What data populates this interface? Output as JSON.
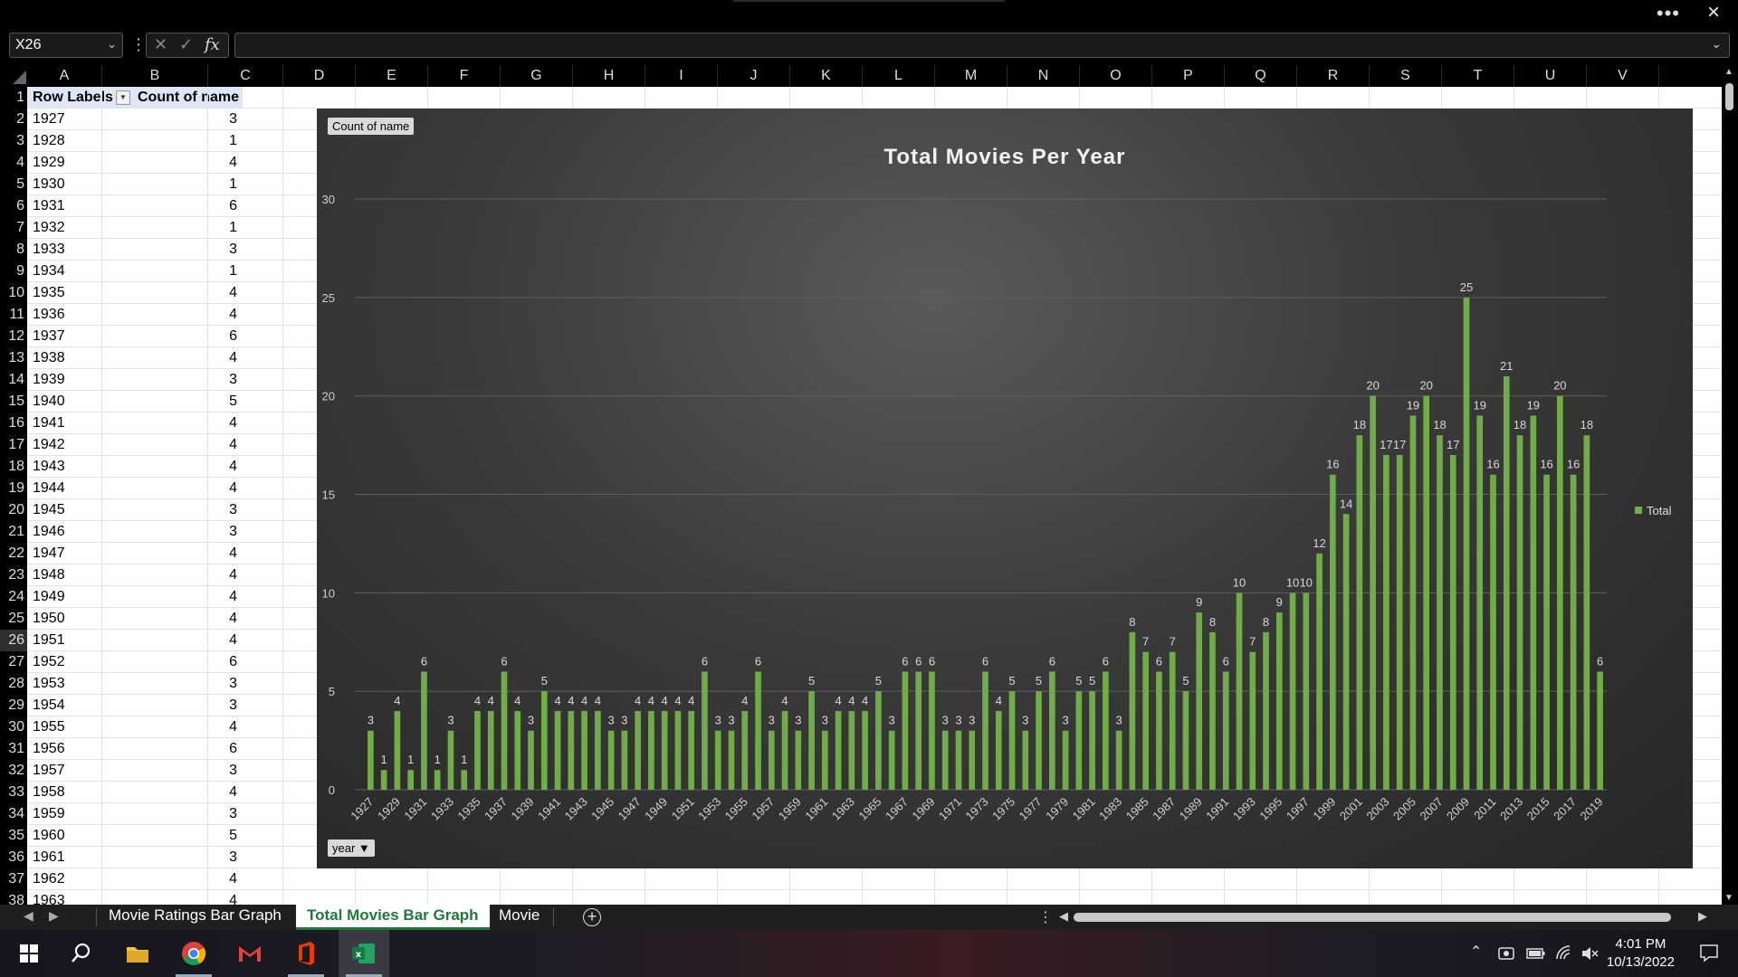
{
  "namebox": "X26",
  "formula": "",
  "columns": [
    "A",
    "B",
    "C",
    "D",
    "E",
    "F",
    "G",
    "H",
    "I",
    "J",
    "K",
    "L",
    "M",
    "N",
    "O",
    "P",
    "Q",
    "R",
    "S",
    "T",
    "U",
    "V"
  ],
  "rows": [
    "1",
    "2",
    "3",
    "4",
    "5",
    "6",
    "7",
    "8",
    "9",
    "10",
    "11",
    "12",
    "13",
    "14",
    "15",
    "16",
    "17",
    "18",
    "19",
    "20",
    "21",
    "22",
    "23",
    "24",
    "25",
    "26",
    "27",
    "28",
    "29",
    "30",
    "31",
    "32",
    "33",
    "34",
    "35",
    "36",
    "37",
    "38"
  ],
  "selected_row": "26",
  "pivot": {
    "header_labels": "Row Labels",
    "header_count": "Count of name",
    "rows": [
      [
        "1927",
        "3"
      ],
      [
        "1928",
        "1"
      ],
      [
        "1929",
        "4"
      ],
      [
        "1930",
        "1"
      ],
      [
        "1931",
        "6"
      ],
      [
        "1932",
        "1"
      ],
      [
        "1933",
        "3"
      ],
      [
        "1934",
        "1"
      ],
      [
        "1935",
        "4"
      ],
      [
        "1936",
        "4"
      ],
      [
        "1937",
        "6"
      ],
      [
        "1938",
        "4"
      ],
      [
        "1939",
        "3"
      ],
      [
        "1940",
        "5"
      ],
      [
        "1941",
        "4"
      ],
      [
        "1942",
        "4"
      ],
      [
        "1943",
        "4"
      ],
      [
        "1944",
        "4"
      ],
      [
        "1945",
        "3"
      ],
      [
        "1946",
        "3"
      ],
      [
        "1947",
        "4"
      ],
      [
        "1948",
        "4"
      ],
      [
        "1949",
        "4"
      ],
      [
        "1950",
        "4"
      ],
      [
        "1951",
        "4"
      ],
      [
        "1952",
        "6"
      ],
      [
        "1953",
        "3"
      ],
      [
        "1954",
        "3"
      ],
      [
        "1955",
        "4"
      ],
      [
        "1956",
        "6"
      ],
      [
        "1957",
        "3"
      ],
      [
        "1958",
        "4"
      ],
      [
        "1959",
        "3"
      ],
      [
        "1960",
        "5"
      ],
      [
        "1961",
        "3"
      ],
      [
        "1962",
        "4"
      ],
      [
        "1963",
        "4"
      ]
    ]
  },
  "chart_data": {
    "type": "bar",
    "title": "Total Movies Per Year",
    "field_button_value": "Count of name",
    "field_button_axis": "year",
    "legend": "Total",
    "legend_position": "right",
    "ylim": [
      0,
      30
    ],
    "yticks": [
      0,
      5,
      10,
      15,
      20,
      25,
      30
    ],
    "grid": true,
    "color": "#70ad47",
    "categories": [
      "1927",
      "1928",
      "1929",
      "1930",
      "1931",
      "1932",
      "1933",
      "1934",
      "1935",
      "1936",
      "1937",
      "1938",
      "1939",
      "1940",
      "1941",
      "1942",
      "1943",
      "1944",
      "1945",
      "1946",
      "1947",
      "1948",
      "1949",
      "1950",
      "1951",
      "1952",
      "1953",
      "1954",
      "1955",
      "1956",
      "1957",
      "1958",
      "1959",
      "1960",
      "1961",
      "1962",
      "1963",
      "1964",
      "1965",
      "1966",
      "1967",
      "1968",
      "1969",
      "1970",
      "1971",
      "1972",
      "1973",
      "1974",
      "1975",
      "1976",
      "1977",
      "1978",
      "1979",
      "1980",
      "1981",
      "1982",
      "1983",
      "1984",
      "1985",
      "1986",
      "1987",
      "1988",
      "1989",
      "1990",
      "1991",
      "1992",
      "1993",
      "1994",
      "1995",
      "1996",
      "1997",
      "1998",
      "1999",
      "2000",
      "2001",
      "2002",
      "2003",
      "2004",
      "2005",
      "2006",
      "2007",
      "2008",
      "2009",
      "2010",
      "2011",
      "2012",
      "2013",
      "2014",
      "2015",
      "2016",
      "2017",
      "2018",
      "2019"
    ],
    "values": [
      3,
      1,
      4,
      1,
      6,
      1,
      3,
      1,
      4,
      4,
      6,
      4,
      3,
      5,
      4,
      4,
      4,
      4,
      3,
      3,
      4,
      4,
      4,
      4,
      4,
      6,
      3,
      3,
      4,
      6,
      3,
      4,
      3,
      5,
      3,
      4,
      4,
      4,
      5,
      3,
      6,
      6,
      6,
      3,
      3,
      3,
      6,
      4,
      5,
      3,
      5,
      6,
      3,
      5,
      5,
      6,
      3,
      8,
      7,
      6,
      7,
      5,
      9,
      8,
      6,
      10,
      7,
      8,
      9,
      10,
      10,
      12,
      16,
      14,
      18,
      20,
      17,
      17,
      19,
      20,
      18,
      17,
      25,
      19,
      16,
      21,
      18,
      19,
      16,
      20,
      16,
      18,
      6
    ]
  },
  "sheet_tabs": [
    "Movie Ratings Bar Graph",
    "Total Movies Bar Graph",
    "Movie"
  ],
  "active_tab": "Total Movies Bar Graph",
  "clock": {
    "time": "4:01 PM",
    "date": "10/13/2022"
  },
  "icons": {
    "close": "×",
    "more": "•••",
    "cancel": "✕",
    "enter": "✓",
    "fx": "fx",
    "add_sheet": "+",
    "dropdown": "⌄"
  }
}
